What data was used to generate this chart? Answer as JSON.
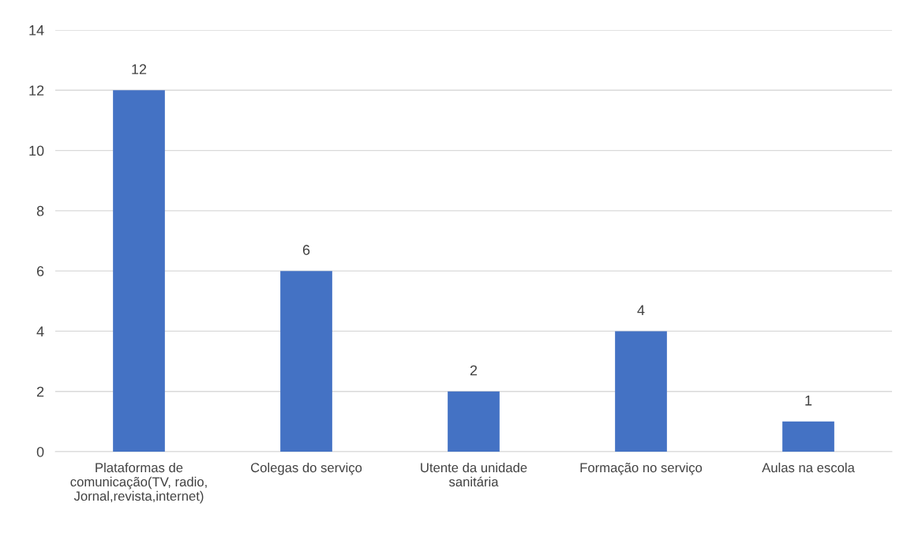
{
  "chart_data": {
    "type": "bar",
    "categories": [
      "Plataformas de\ncomunicação(TV, radio,\nJornal,revista,internet)",
      "Colegas do serviço",
      "Utente da unidade\nsanitária",
      "Formação no serviço",
      "Aulas na escola"
    ],
    "values": [
      12,
      6,
      2,
      4,
      1
    ],
    "color": "#4472c4",
    "ylim": [
      0,
      14
    ],
    "yticks": [
      0,
      2,
      4,
      6,
      8,
      10,
      12,
      14
    ],
    "grid": "y",
    "data_labels": true
  }
}
